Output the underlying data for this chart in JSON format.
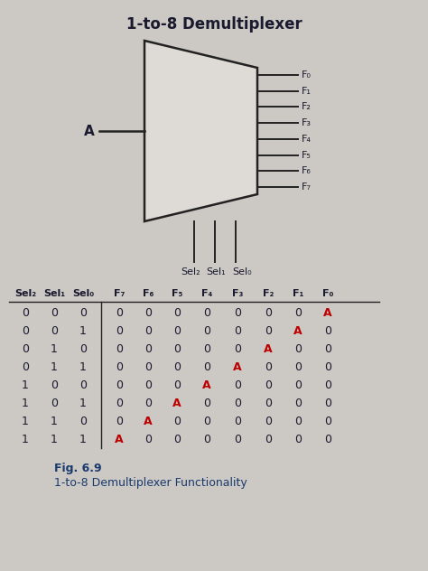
{
  "title": "1-to-8 Demultiplexer",
  "fig_label": "Fig. 6.9",
  "fig_desc": "1-to-8 Demultiplexer Functionality",
  "bg_color": "#ccc8c4",
  "input_label": "A",
  "output_labels": [
    "F₀",
    "F₁",
    "F₂",
    "F₃",
    "F₄",
    "F₅",
    "F₆",
    "F₇"
  ],
  "sel_labels_bottom": [
    "Sel₂",
    "Sel₁",
    "Sel₀"
  ],
  "header_cols": [
    "Sel₂",
    "Sel₁",
    "Sel₀",
    "F₇",
    "F₆",
    "F₅",
    "F₄",
    "F₃",
    "F₂",
    "F₁",
    "F₀"
  ],
  "rows": [
    [
      "0",
      "0",
      "0",
      "0",
      "0",
      "0",
      "0",
      "0",
      "0",
      "0",
      "A"
    ],
    [
      "0",
      "0",
      "1",
      "0",
      "0",
      "0",
      "0",
      "0",
      "0",
      "A",
      "0"
    ],
    [
      "0",
      "1",
      "0",
      "0",
      "0",
      "0",
      "0",
      "0",
      "A",
      "0",
      "0"
    ],
    [
      "0",
      "1",
      "1",
      "0",
      "0",
      "0",
      "0",
      "A",
      "0",
      "0",
      "0"
    ],
    [
      "1",
      "0",
      "0",
      "0",
      "0",
      "0",
      "A",
      "0",
      "0",
      "0",
      "0"
    ],
    [
      "1",
      "0",
      "1",
      "0",
      "0",
      "A",
      "0",
      "0",
      "0",
      "0",
      "0"
    ],
    [
      "1",
      "1",
      "0",
      "0",
      "A",
      "0",
      "0",
      "0",
      "0",
      "0",
      "0"
    ],
    [
      "1",
      "1",
      "1",
      "A",
      "0",
      "0",
      "0",
      "0",
      "0",
      "0",
      "0"
    ]
  ],
  "red_col_per_row": [
    10,
    9,
    8,
    7,
    6,
    5,
    4,
    3
  ],
  "text_color": "#1a1a2e",
  "red_color": "#bb0000",
  "line_color": "#222222",
  "caption_color": "#1a3a6e",
  "trap_face": "#dedad6",
  "trap_edge": "#222222"
}
